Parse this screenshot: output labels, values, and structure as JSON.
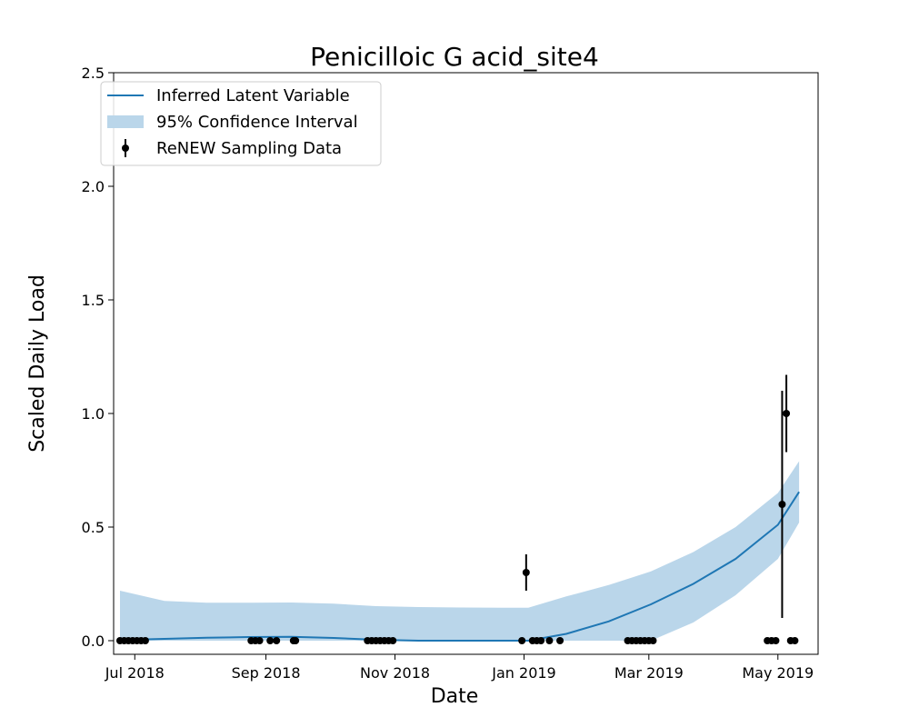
{
  "chart_data": {
    "type": "line",
    "title": "Penicilloic G acid_site4",
    "xlabel": "Date",
    "ylabel": "Scaled Daily Load",
    "xlim": [
      "2018-06-21",
      "2019-05-20"
    ],
    "ylim": [
      -0.06,
      2.5
    ],
    "x_ticks": [
      {
        "date": "2018-07-01",
        "label": "Jul 2018"
      },
      {
        "date": "2018-09-01",
        "label": "Sep 2018"
      },
      {
        "date": "2018-11-01",
        "label": "Nov 2018"
      },
      {
        "date": "2019-01-01",
        "label": "Jan 2019"
      },
      {
        "date": "2019-03-01",
        "label": "Mar 2019"
      },
      {
        "date": "2019-05-01",
        "label": "May 2019"
      }
    ],
    "y_ticks": [
      {
        "value": 0.0,
        "label": "0.0"
      },
      {
        "value": 0.5,
        "label": "0.5"
      },
      {
        "value": 1.0,
        "label": "1.0"
      },
      {
        "value": 1.5,
        "label": "1.5"
      },
      {
        "value": 2.0,
        "label": "2.0"
      },
      {
        "value": 2.5,
        "label": "2.5"
      }
    ],
    "grid": false,
    "legend_position": "top-left",
    "colors": {
      "line": "#1f77b4",
      "band": "#bad6ea",
      "points": "#000000"
    },
    "series": [
      {
        "name": "Inferred Latent Variable",
        "kind": "line",
        "points": [
          {
            "x": "2018-06-24",
            "y": 0.003
          },
          {
            "x": "2018-07-15",
            "y": 0.008
          },
          {
            "x": "2018-08-04",
            "y": 0.013
          },
          {
            "x": "2018-08-24",
            "y": 0.016
          },
          {
            "x": "2018-09-13",
            "y": 0.017
          },
          {
            "x": "2018-10-03",
            "y": 0.012
          },
          {
            "x": "2018-10-23",
            "y": 0.004
          },
          {
            "x": "2018-11-12",
            "y": 0.0
          },
          {
            "x": "2018-12-02",
            "y": 0.0
          },
          {
            "x": "2018-12-22",
            "y": 0.0
          },
          {
            "x": "2019-01-03",
            "y": 0.0
          },
          {
            "x": "2019-01-21",
            "y": 0.03
          },
          {
            "x": "2019-02-10",
            "y": 0.085
          },
          {
            "x": "2019-03-02",
            "y": 0.16
          },
          {
            "x": "2019-03-22",
            "y": 0.25
          },
          {
            "x": "2019-04-11",
            "y": 0.36
          },
          {
            "x": "2019-05-01",
            "y": 0.51
          },
          {
            "x": "2019-05-11",
            "y": 0.655
          }
        ]
      },
      {
        "name": "95% Confidence Interval",
        "kind": "band",
        "points": [
          {
            "x": "2018-06-24",
            "lower": 0.0,
            "upper": 0.22
          },
          {
            "x": "2018-07-15",
            "lower": 0.0,
            "upper": 0.175
          },
          {
            "x": "2018-08-04",
            "lower": 0.0,
            "upper": 0.167
          },
          {
            "x": "2018-08-24",
            "lower": 0.0,
            "upper": 0.167
          },
          {
            "x": "2018-09-13",
            "lower": 0.0,
            "upper": 0.168
          },
          {
            "x": "2018-10-03",
            "lower": 0.0,
            "upper": 0.163
          },
          {
            "x": "2018-10-23",
            "lower": 0.0,
            "upper": 0.152
          },
          {
            "x": "2018-11-12",
            "lower": 0.0,
            "upper": 0.148
          },
          {
            "x": "2018-12-02",
            "lower": 0.0,
            "upper": 0.146
          },
          {
            "x": "2018-12-22",
            "lower": 0.0,
            "upper": 0.145
          },
          {
            "x": "2019-01-03",
            "lower": 0.0,
            "upper": 0.145
          },
          {
            "x": "2019-01-21",
            "lower": 0.0,
            "upper": 0.195
          },
          {
            "x": "2019-02-10",
            "lower": 0.0,
            "upper": 0.245
          },
          {
            "x": "2019-03-02",
            "lower": 0.0,
            "upper": 0.305
          },
          {
            "x": "2019-03-22",
            "lower": 0.08,
            "upper": 0.39
          },
          {
            "x": "2019-04-11",
            "lower": 0.2,
            "upper": 0.5
          },
          {
            "x": "2019-05-01",
            "lower": 0.36,
            "upper": 0.65
          },
          {
            "x": "2019-05-11",
            "lower": 0.52,
            "upper": 0.79
          }
        ]
      },
      {
        "name": "ReNEW Sampling Data",
        "kind": "errorbar",
        "points": [
          {
            "x": "2018-06-24",
            "y": 0.0
          },
          {
            "x": "2018-06-26",
            "y": 0.0
          },
          {
            "x": "2018-06-28",
            "y": 0.0
          },
          {
            "x": "2018-06-30",
            "y": 0.0
          },
          {
            "x": "2018-07-02",
            "y": 0.0
          },
          {
            "x": "2018-07-04",
            "y": 0.0
          },
          {
            "x": "2018-07-06",
            "y": 0.0
          },
          {
            "x": "2018-08-25",
            "y": 0.0
          },
          {
            "x": "2018-08-27",
            "y": 0.0
          },
          {
            "x": "2018-08-29",
            "y": 0.0
          },
          {
            "x": "2018-09-03",
            "y": 0.0
          },
          {
            "x": "2018-09-06",
            "y": 0.0
          },
          {
            "x": "2018-09-14",
            "y": 0.0
          },
          {
            "x": "2018-09-15",
            "y": 0.0
          },
          {
            "x": "2018-10-19",
            "y": 0.0
          },
          {
            "x": "2018-10-21",
            "y": 0.0
          },
          {
            "x": "2018-10-23",
            "y": 0.0
          },
          {
            "x": "2018-10-25",
            "y": 0.0
          },
          {
            "x": "2018-10-27",
            "y": 0.0
          },
          {
            "x": "2018-10-29",
            "y": 0.0
          },
          {
            "x": "2018-10-31",
            "y": 0.0
          },
          {
            "x": "2018-12-31",
            "y": 0.0
          },
          {
            "x": "2019-01-02",
            "y": 0.3,
            "err": 0.08
          },
          {
            "x": "2019-01-05",
            "y": 0.0
          },
          {
            "x": "2019-01-07",
            "y": 0.0
          },
          {
            "x": "2019-01-09",
            "y": 0.0
          },
          {
            "x": "2019-01-13",
            "y": 0.0
          },
          {
            "x": "2019-01-18",
            "y": 0.0
          },
          {
            "x": "2019-02-19",
            "y": 0.0
          },
          {
            "x": "2019-02-21",
            "y": 0.0
          },
          {
            "x": "2019-02-23",
            "y": 0.0
          },
          {
            "x": "2019-02-25",
            "y": 0.0
          },
          {
            "x": "2019-02-27",
            "y": 0.0
          },
          {
            "x": "2019-03-01",
            "y": 0.0
          },
          {
            "x": "2019-03-03",
            "y": 0.0
          },
          {
            "x": "2019-04-26",
            "y": 0.0
          },
          {
            "x": "2019-04-28",
            "y": 0.0
          },
          {
            "x": "2019-04-30",
            "y": 0.0
          },
          {
            "x": "2019-05-03",
            "y": 0.6,
            "err": 0.5
          },
          {
            "x": "2019-05-05",
            "y": 1.0,
            "err": 0.17
          },
          {
            "x": "2019-05-07",
            "y": 0.0
          },
          {
            "x": "2019-05-09",
            "y": 0.0
          }
        ]
      }
    ]
  }
}
